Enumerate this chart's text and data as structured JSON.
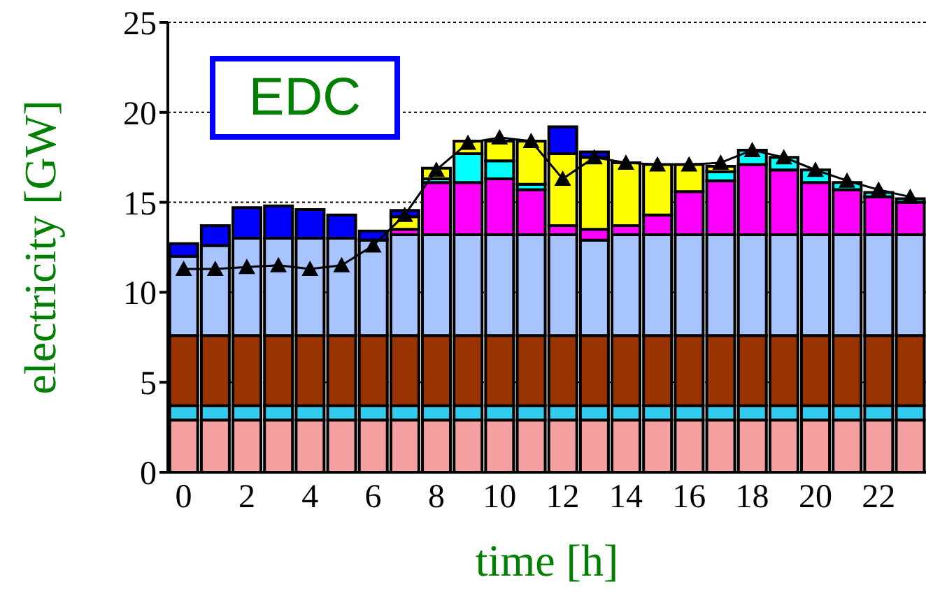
{
  "chart_data": {
    "type": "bar",
    "stacked": true,
    "xlabel": "time [h]",
    "ylabel": "electricity [GW]",
    "annotations": [
      "EDC"
    ],
    "categories": [
      "0",
      null,
      "2",
      null,
      "4",
      null,
      "6",
      null,
      "8",
      null,
      "10",
      null,
      "12",
      null,
      "14",
      null,
      "16",
      null,
      "18",
      null,
      "20",
      null,
      "22",
      null
    ],
    "series": [
      {
        "color": "#f4a0a0",
        "values": [
          2.9,
          2.9,
          2.9,
          2.9,
          2.9,
          2.9,
          2.9,
          2.9,
          2.9,
          2.9,
          2.9,
          2.9,
          2.9,
          2.9,
          2.9,
          2.9,
          2.9,
          2.9,
          2.9,
          2.9,
          2.9,
          2.9,
          2.9,
          2.9
        ]
      },
      {
        "color": "#33ccee",
        "values": [
          0.8,
          0.8,
          0.8,
          0.8,
          0.8,
          0.8,
          0.8,
          0.8,
          0.8,
          0.8,
          0.8,
          0.8,
          0.8,
          0.8,
          0.8,
          0.8,
          0.8,
          0.8,
          0.8,
          0.8,
          0.8,
          0.8,
          0.8,
          0.8
        ]
      },
      {
        "color": "#993300",
        "values": [
          3.9,
          3.9,
          3.9,
          3.9,
          3.9,
          3.9,
          3.9,
          3.9,
          3.9,
          3.9,
          3.9,
          3.9,
          3.9,
          3.9,
          3.9,
          3.9,
          3.9,
          3.9,
          3.9,
          3.9,
          3.9,
          3.9,
          3.9,
          3.9
        ]
      },
      {
        "color": "#a8c4ff",
        "values": [
          4.4,
          5.0,
          5.4,
          5.4,
          5.4,
          5.4,
          5.3,
          5.6,
          5.6,
          5.6,
          5.6,
          5.6,
          5.6,
          5.3,
          5.6,
          5.6,
          5.6,
          5.6,
          5.6,
          5.6,
          5.6,
          5.6,
          5.6,
          5.6
        ]
      },
      {
        "color": "#ff00ff",
        "values": [
          0,
          0,
          0,
          0,
          0,
          0,
          0,
          0.3,
          2.9,
          2.9,
          3.1,
          2.5,
          0.5,
          0.6,
          0.5,
          1.1,
          2.4,
          3.0,
          3.9,
          3.6,
          2.9,
          2.5,
          2.1,
          1.8
        ]
      },
      {
        "color": "#00ffff",
        "values": [
          0,
          0,
          0,
          0,
          0,
          0,
          0,
          0,
          0.2,
          1.6,
          1.0,
          0.3,
          0,
          0,
          0,
          0,
          0,
          0.5,
          0.8,
          0.7,
          0.7,
          0.4,
          0.25,
          0.2
        ]
      },
      {
        "color": "#ffff00",
        "values": [
          0,
          0,
          0,
          0,
          0,
          0,
          0,
          0.7,
          0.6,
          0.7,
          1.1,
          2.4,
          4.0,
          4.0,
          3.5,
          2.8,
          1.5,
          0.3,
          0,
          0,
          0,
          0,
          0,
          0
        ]
      },
      {
        "color": "#0000ff",
        "values": [
          0.7,
          1.1,
          1.7,
          1.8,
          1.6,
          1.3,
          0.5,
          0.35,
          0,
          0,
          0,
          0,
          1.5,
          0.3,
          0,
          0,
          0,
          0,
          0,
          0,
          0,
          0,
          0,
          0
        ]
      },
      {
        "type": "line",
        "color": "#000000",
        "marker": "triangle",
        "values": [
          11.3,
          11.3,
          11.4,
          11.5,
          11.3,
          11.5,
          12.6,
          14.3,
          16.8,
          18.3,
          18.6,
          18.4,
          16.3,
          17.5,
          17.2,
          17.1,
          17.1,
          17.2,
          17.9,
          17.5,
          16.8,
          16.2,
          15.7,
          15.3
        ]
      }
    ],
    "ylim": [
      0,
      25
    ],
    "yticks": [
      0,
      5,
      10,
      15,
      20,
      25
    ],
    "grid": "y"
  }
}
